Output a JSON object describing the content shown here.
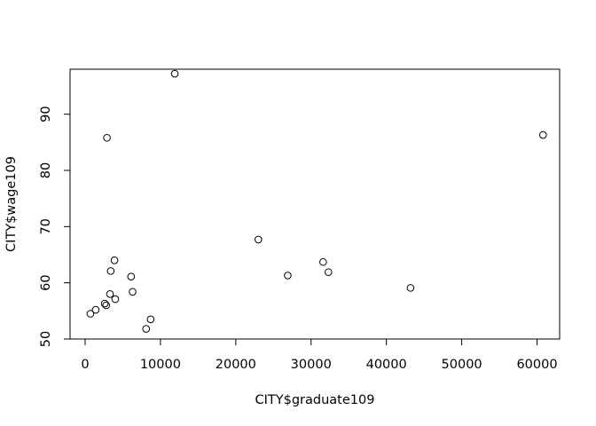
{
  "chart_data": {
    "type": "scatter",
    "title": "",
    "xlabel": "CITY$graduate109",
    "ylabel": "CITY$wage109",
    "xlim": [
      -2000,
      63000
    ],
    "ylim": [
      50,
      98
    ],
    "xticks": [
      0,
      10000,
      20000,
      30000,
      40000,
      50000,
      60000
    ],
    "xtick_labels": [
      "0",
      "10000",
      "20000",
      "30000",
      "40000",
      "50000",
      "60000"
    ],
    "yticks": [
      50,
      60,
      70,
      80,
      90
    ],
    "ytick_labels": [
      "50",
      "60",
      "70",
      "80",
      "90"
    ],
    "grid": false,
    "legend": "none",
    "marker": "open-circle",
    "x": [
      11900,
      2900,
      60800,
      23000,
      31600,
      26900,
      32300,
      43200,
      3900,
      3400,
      6100,
      6300,
      3300,
      4000,
      2600,
      2800,
      1400,
      700,
      8700,
      8100
    ],
    "y": [
      97.2,
      85.8,
      86.3,
      67.7,
      63.7,
      61.3,
      61.9,
      59.1,
      64.0,
      62.1,
      61.1,
      58.4,
      58.0,
      57.1,
      56.3,
      56.0,
      55.2,
      54.5,
      53.5,
      51.8
    ]
  }
}
